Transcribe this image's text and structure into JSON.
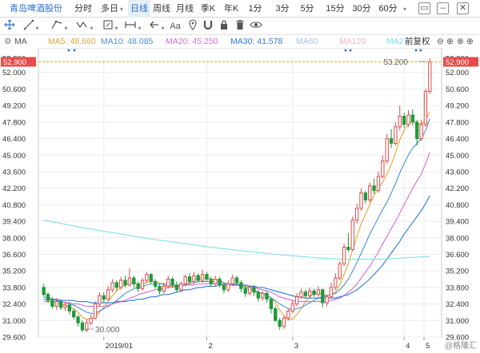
{
  "header": {
    "title": "青岛啤酒股份",
    "tabs": [
      {
        "label": "分时",
        "active": false
      },
      {
        "label": "多日",
        "active": false,
        "dropdown": true
      },
      {
        "label": "日线",
        "active": true
      },
      {
        "label": "周线",
        "active": false
      },
      {
        "label": "月线",
        "active": false
      },
      {
        "label": "季K",
        "active": false
      },
      {
        "label": "年K",
        "active": false
      },
      {
        "label": "1分",
        "active": false
      },
      {
        "label": "3分",
        "active": false
      },
      {
        "label": "5分",
        "active": false
      },
      {
        "label": "15分",
        "active": false
      },
      {
        "label": "30分",
        "active": false
      },
      {
        "label": "60分",
        "active": false
      }
    ],
    "window_buttons": [
      "restore-icon",
      "minimize-icon",
      "close-icon"
    ]
  },
  "toolbar": {
    "tools": [
      "crosshair-icon",
      "line-draw-icon",
      "trend-line-icon",
      "wave-icon",
      "range-icon",
      "measure-icon",
      "arrow-icon",
      "text-icon",
      "pin-icon",
      "magnet-icon",
      "lock-icon",
      "trash-icon",
      "eye-icon"
    ],
    "text_tool_label": "Aa"
  },
  "legend": {
    "indicator": "MA",
    "ma5": "MA5: 48.660",
    "ma10": "MA10: 48.085",
    "ma20": "MA20: 45.250",
    "ma30": "MA30: 41.578",
    "ma60": "MA60",
    "ma120": "MA120",
    "ma2": "MA2",
    "adjust": "前复权",
    "colors": {
      "ma5": "#e5a533",
      "ma10": "#4a8fd6",
      "ma20": "#d86ad6",
      "ma30": "#2a7bd8",
      "ma60": "#a8c0e0",
      "ma120": "#f0b0c8",
      "ma250": "#7fe0e8"
    }
  },
  "chart_data": {
    "type": "candlestick",
    "y_ticks": [
      "53.200",
      "52.000",
      "50.600",
      "49.200",
      "47.800",
      "46.400",
      "45.000",
      "43.600",
      "42.200",
      "40.800",
      "39.400",
      "38.000",
      "36.600",
      "35.200",
      "33.800",
      "32.400",
      "31.000",
      "29.600"
    ],
    "ylim": [
      29.6,
      53.2
    ],
    "current_price": "52.900",
    "x_labels": [
      "2019/01",
      "2",
      "3",
      "4",
      "5"
    ],
    "annotations": {
      "high": "53.200",
      "low": "30.000"
    },
    "up_color": "#e04b4b",
    "down_color": "#1f9a3b",
    "candles": [
      [
        33.8,
        33.2,
        34.1,
        33.0
      ],
      [
        33.2,
        32.7,
        33.4,
        32.5
      ],
      [
        32.7,
        32.2,
        33.0,
        32.0
      ],
      [
        32.2,
        32.6,
        32.9,
        31.9
      ],
      [
        32.6,
        32.1,
        32.8,
        31.9
      ],
      [
        32.1,
        32.3,
        32.6,
        31.8
      ],
      [
        32.3,
        31.8,
        32.5,
        31.5
      ],
      [
        31.8,
        31.3,
        32.0,
        31.1
      ],
      [
        31.3,
        30.8,
        31.5,
        30.5
      ],
      [
        30.8,
        30.2,
        31.0,
        30.0
      ],
      [
        30.2,
        30.8,
        31.1,
        30.0
      ],
      [
        30.8,
        31.2,
        31.5,
        30.6
      ],
      [
        31.2,
        32.4,
        32.6,
        31.1
      ],
      [
        32.4,
        33.1,
        33.4,
        32.2
      ],
      [
        33.1,
        32.8,
        33.4,
        32.5
      ],
      [
        32.8,
        33.6,
        33.9,
        32.7
      ],
      [
        33.6,
        34.2,
        34.5,
        33.4
      ],
      [
        34.2,
        33.8,
        34.4,
        33.5
      ],
      [
        33.8,
        34.4,
        34.7,
        33.6
      ],
      [
        34.4,
        34.0,
        34.8,
        33.8
      ],
      [
        34.0,
        34.6,
        35.4,
        33.9
      ],
      [
        34.6,
        34.1,
        34.8,
        33.8
      ],
      [
        34.1,
        33.7,
        34.3,
        33.4
      ],
      [
        33.7,
        34.4,
        34.6,
        33.5
      ],
      [
        34.4,
        34.9,
        35.1,
        34.2
      ],
      [
        34.9,
        34.3,
        35.0,
        34.1
      ],
      [
        34.3,
        33.9,
        34.5,
        33.7
      ],
      [
        33.9,
        33.5,
        34.1,
        33.2
      ],
      [
        33.5,
        33.9,
        34.2,
        33.3
      ],
      [
        33.9,
        34.5,
        34.8,
        33.7
      ],
      [
        34.5,
        34.0,
        34.7,
        33.8
      ],
      [
        34.0,
        33.6,
        34.3,
        33.4
      ],
      [
        33.6,
        34.1,
        34.3,
        33.4
      ],
      [
        34.1,
        34.7,
        34.9,
        33.9
      ],
      [
        34.7,
        34.3,
        35.0,
        34.1
      ],
      [
        34.3,
        34.8,
        35.1,
        34.1
      ],
      [
        34.8,
        34.4,
        35.0,
        34.2
      ],
      [
        34.4,
        34.9,
        35.3,
        34.2
      ],
      [
        34.9,
        34.5,
        35.1,
        34.3
      ],
      [
        34.5,
        34.1,
        34.7,
        33.9
      ],
      [
        34.1,
        34.5,
        34.8,
        33.9
      ],
      [
        34.5,
        34.0,
        34.7,
        33.8
      ],
      [
        34.0,
        33.6,
        34.2,
        33.3
      ],
      [
        33.6,
        34.1,
        34.4,
        33.4
      ],
      [
        34.1,
        34.6,
        34.9,
        33.9
      ],
      [
        34.6,
        34.2,
        34.8,
        34.0
      ],
      [
        34.2,
        33.7,
        34.4,
        33.4
      ],
      [
        33.7,
        33.3,
        33.9,
        33.0
      ],
      [
        33.3,
        33.8,
        34.0,
        33.1
      ],
      [
        33.8,
        33.4,
        34.0,
        33.1
      ],
      [
        33.4,
        32.9,
        33.6,
        32.6
      ],
      [
        32.9,
        33.3,
        33.5,
        32.7
      ],
      [
        33.3,
        32.8,
        33.5,
        32.5
      ],
      [
        32.8,
        32.0,
        33.0,
        31.6
      ],
      [
        32.0,
        31.0,
        32.2,
        30.9
      ],
      [
        31.0,
        30.5,
        31.2,
        30.2
      ],
      [
        30.5,
        31.2,
        31.4,
        30.3
      ],
      [
        31.2,
        31.8,
        32.0,
        31.0
      ],
      [
        31.8,
        32.4,
        32.7,
        31.6
      ],
      [
        32.4,
        33.0,
        33.3,
        32.2
      ],
      [
        33.0,
        33.4,
        33.7,
        32.8
      ],
      [
        33.4,
        33.1,
        33.6,
        32.9
      ],
      [
        33.1,
        33.5,
        33.8,
        32.9
      ],
      [
        33.5,
        33.2,
        33.7,
        33.0
      ],
      [
        33.2,
        33.6,
        33.9,
        33.0
      ],
      [
        33.6,
        32.5,
        33.7,
        32.1
      ],
      [
        32.5,
        33.0,
        33.2,
        32.2
      ],
      [
        33.0,
        33.8,
        34.2,
        32.9
      ],
      [
        33.8,
        34.6,
        35.0,
        33.6
      ],
      [
        34.6,
        35.8,
        36.0,
        34.4
      ],
      [
        35.8,
        37.2,
        37.5,
        35.6
      ],
      [
        37.2,
        37.0,
        38.4,
        36.8
      ],
      [
        37.0,
        39.5,
        39.8,
        36.9
      ],
      [
        39.5,
        40.5,
        40.9,
        39.2
      ],
      [
        40.5,
        41.8,
        42.2,
        40.3
      ],
      [
        41.8,
        41.2,
        42.0,
        40.9
      ],
      [
        41.2,
        42.4,
        42.7,
        41.0
      ],
      [
        42.4,
        42.0,
        43.0,
        41.7
      ],
      [
        42.0,
        43.2,
        43.6,
        41.8
      ],
      [
        43.2,
        44.5,
        45.0,
        43.0
      ],
      [
        44.5,
        46.4,
        46.8,
        44.3
      ],
      [
        46.4,
        46.0,
        47.2,
        45.6
      ],
      [
        46.0,
        47.4,
        47.8,
        45.8
      ],
      [
        47.4,
        48.3,
        49.2,
        47.1
      ],
      [
        48.3,
        47.6,
        48.6,
        47.3
      ],
      [
        47.6,
        48.4,
        48.8,
        47.4
      ],
      [
        48.4,
        47.8,
        48.9,
        47.5
      ],
      [
        47.8,
        46.4,
        48.0,
        45.8
      ],
      [
        46.4,
        47.6,
        48.0,
        46.2
      ],
      [
        47.6,
        50.4,
        50.6,
        47.4
      ],
      [
        50.4,
        52.9,
        53.2,
        50.2
      ]
    ],
    "ma_lines": {
      "ma5": [
        33.4,
        33.1,
        32.7,
        32.5,
        32.4,
        32.3,
        32.2,
        32.0,
        31.7,
        31.3,
        31.1,
        31.1,
        31.3,
        31.7,
        32.1,
        32.6,
        33.1,
        33.5,
        33.8,
        34.0,
        34.2,
        34.2,
        34.1,
        34.1,
        34.2,
        34.3,
        34.3,
        34.2,
        34.0,
        33.9,
        33.9,
        33.9,
        33.9,
        34.0,
        34.2,
        34.4,
        34.5,
        34.6,
        34.6,
        34.5,
        34.5,
        34.4,
        34.2,
        34.1,
        34.1,
        34.1,
        34.0,
        33.9,
        33.8,
        33.6,
        33.4,
        33.3,
        33.2,
        32.9,
        32.5,
        31.9,
        31.4,
        31.1,
        31.1,
        31.5,
        32.0,
        32.6,
        33.0,
        33.3,
        33.4,
        33.2,
        33.1,
        33.2,
        33.4,
        34.0,
        34.9,
        35.8,
        37.0,
        38.1,
        39.2,
        40.0,
        40.8,
        41.6,
        42.2,
        42.7,
        43.4,
        44.2,
        45.2,
        46.3,
        47.1,
        47.6,
        47.9,
        47.7,
        47.6,
        48.0,
        48.66
      ],
      "ma10": [
        33.0,
        32.9,
        32.8,
        32.7,
        32.6,
        32.5,
        32.4,
        32.3,
        32.1,
        31.9,
        31.7,
        31.6,
        31.6,
        31.8,
        32.0,
        32.2,
        32.4,
        32.7,
        33.0,
        33.3,
        33.5,
        33.7,
        33.8,
        33.9,
        34.0,
        34.1,
        34.1,
        34.1,
        34.1,
        34.0,
        34.0,
        34.0,
        34.0,
        34.0,
        34.1,
        34.2,
        34.3,
        34.3,
        34.3,
        34.3,
        34.3,
        34.3,
        34.2,
        34.1,
        34.1,
        34.0,
        33.9,
        33.8,
        33.7,
        33.5,
        33.4,
        33.3,
        33.1,
        32.9,
        32.7,
        32.4,
        32.2,
        32.0,
        31.9,
        32.0,
        32.1,
        32.3,
        32.5,
        32.7,
        32.9,
        33.0,
        33.1,
        33.2,
        33.3,
        33.6,
        34.0,
        34.5,
        35.2,
        35.9,
        36.7,
        37.5,
        38.3,
        39.0,
        39.7,
        40.4,
        41.0,
        41.8,
        42.6,
        43.5,
        44.3,
        45.0,
        45.6,
        46.0,
        46.4,
        47.1,
        48.085
      ],
      "ma20": [
        32.6,
        32.6,
        32.6,
        32.6,
        32.6,
        32.5,
        32.5,
        32.4,
        32.4,
        32.3,
        32.2,
        32.2,
        32.2,
        32.2,
        32.2,
        32.3,
        32.4,
        32.5,
        32.6,
        32.7,
        32.9,
        33.0,
        33.2,
        33.3,
        33.4,
        33.5,
        33.6,
        33.7,
        33.7,
        33.8,
        33.8,
        33.9,
        33.9,
        34.0,
        34.0,
        34.0,
        34.1,
        34.1,
        34.1,
        34.1,
        34.1,
        34.1,
        34.1,
        34.1,
        34.1,
        34.1,
        34.0,
        34.0,
        33.9,
        33.8,
        33.7,
        33.6,
        33.5,
        33.4,
        33.2,
        33.0,
        32.9,
        32.8,
        32.7,
        32.6,
        32.6,
        32.6,
        32.6,
        32.6,
        32.6,
        32.6,
        32.6,
        32.7,
        32.8,
        32.9,
        33.1,
        33.4,
        33.7,
        34.1,
        34.6,
        35.1,
        35.6,
        36.2,
        36.8,
        37.5,
        38.1,
        38.8,
        39.4,
        40.1,
        40.8,
        41.5,
        42.2,
        42.8,
        43.4,
        44.3,
        45.25
      ],
      "ma30": [
        32.8,
        32.8,
        32.8,
        32.8,
        32.7,
        32.7,
        32.7,
        32.7,
        32.6,
        32.6,
        32.6,
        32.5,
        32.5,
        32.5,
        32.5,
        32.5,
        32.5,
        32.6,
        32.6,
        32.6,
        32.7,
        32.7,
        32.8,
        32.8,
        32.9,
        33.0,
        33.0,
        33.1,
        33.2,
        33.2,
        33.3,
        33.4,
        33.5,
        33.6,
        33.6,
        33.7,
        33.8,
        33.8,
        33.9,
        33.9,
        33.9,
        34.0,
        34.0,
        34.0,
        34.0,
        34.0,
        34.0,
        34.0,
        33.9,
        33.9,
        33.8,
        33.8,
        33.7,
        33.6,
        33.5,
        33.4,
        33.3,
        33.2,
        33.1,
        33.0,
        33.0,
        32.9,
        32.9,
        32.9,
        32.9,
        32.9,
        32.9,
        32.9,
        32.9,
        33.0,
        33.1,
        33.2,
        33.4,
        33.6,
        33.9,
        34.2,
        34.5,
        34.9,
        35.3,
        35.7,
        36.2,
        36.7,
        37.2,
        37.7,
        38.3,
        38.8,
        39.3,
        39.8,
        40.3,
        40.9,
        41.578
      ],
      "ma250": [
        39.5,
        39.43,
        39.36,
        39.29,
        39.22,
        39.15,
        39.08,
        39.01,
        38.94,
        38.87,
        38.8,
        38.74,
        38.68,
        38.62,
        38.56,
        38.5,
        38.44,
        38.38,
        38.32,
        38.26,
        38.2,
        38.14,
        38.08,
        38.02,
        37.96,
        37.9,
        37.85,
        37.8,
        37.75,
        37.7,
        37.65,
        37.6,
        37.55,
        37.5,
        37.45,
        37.4,
        37.35,
        37.3,
        37.25,
        37.2,
        37.16,
        37.12,
        37.08,
        37.04,
        37.0,
        36.96,
        36.92,
        36.88,
        36.84,
        36.8,
        36.76,
        36.72,
        36.68,
        36.64,
        36.6,
        36.57,
        36.54,
        36.51,
        36.48,
        36.45,
        36.42,
        36.39,
        36.36,
        36.33,
        36.3,
        36.28,
        36.26,
        36.24,
        36.22,
        36.2,
        36.2,
        36.2,
        36.2,
        36.2,
        36.2,
        36.2,
        36.2,
        36.2,
        36.2,
        36.2,
        36.22,
        36.24,
        36.26,
        36.28,
        36.3,
        36.32,
        36.34,
        36.36,
        36.38,
        36.4,
        36.42
      ]
    }
  },
  "watermark": "@格隆汇"
}
